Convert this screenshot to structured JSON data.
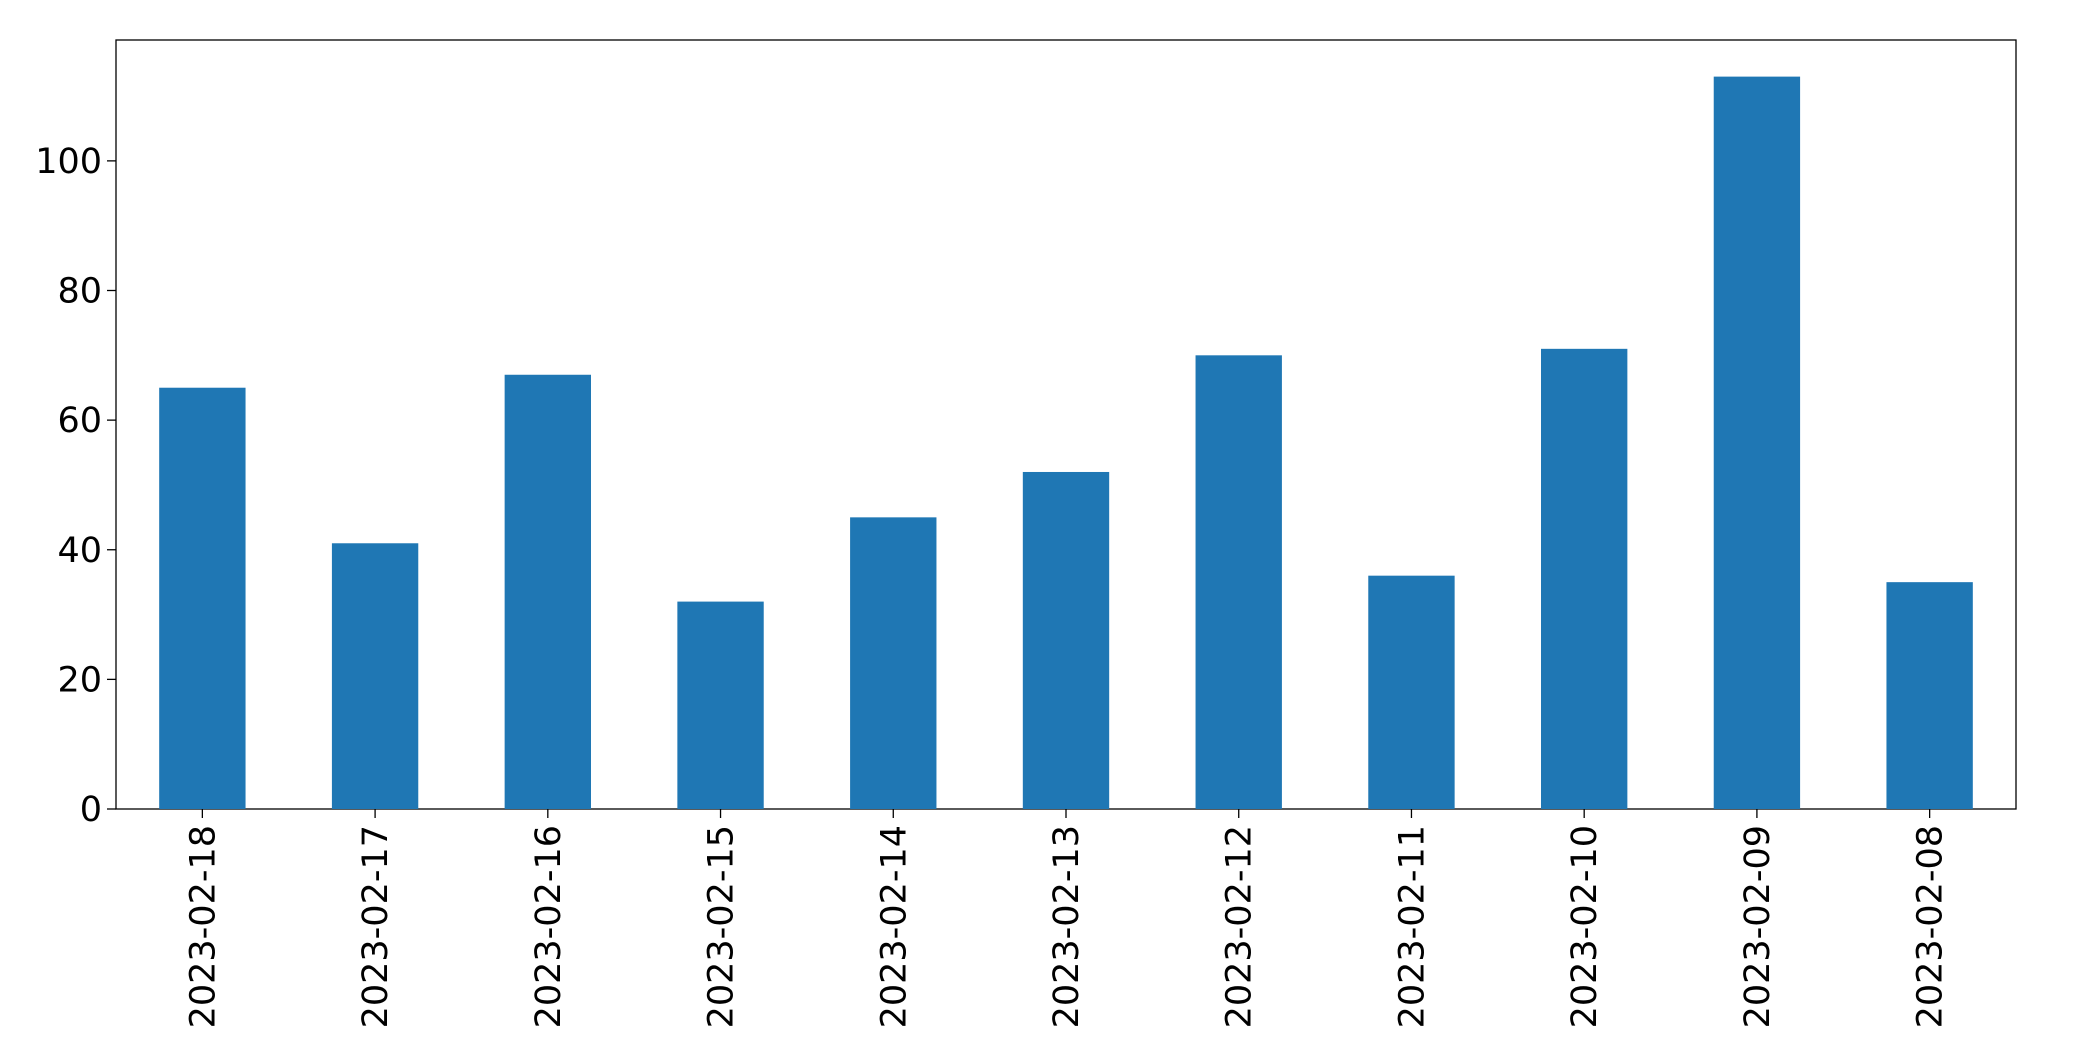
{
  "chart_data": {
    "type": "bar",
    "categories": [
      "2023-02-18",
      "2023-02-17",
      "2023-02-16",
      "2023-02-15",
      "2023-02-14",
      "2023-02-13",
      "2023-02-12",
      "2023-02-11",
      "2023-02-10",
      "2023-02-09",
      "2023-02-08"
    ],
    "values": [
      65,
      41,
      67,
      32,
      45,
      52,
      70,
      36,
      71,
      113,
      35
    ],
    "color": "#1f77b4",
    "ylim": [
      0,
      118.65
    ],
    "yticks": [
      0,
      20,
      40,
      60,
      80,
      100
    ],
    "grid": false
  }
}
